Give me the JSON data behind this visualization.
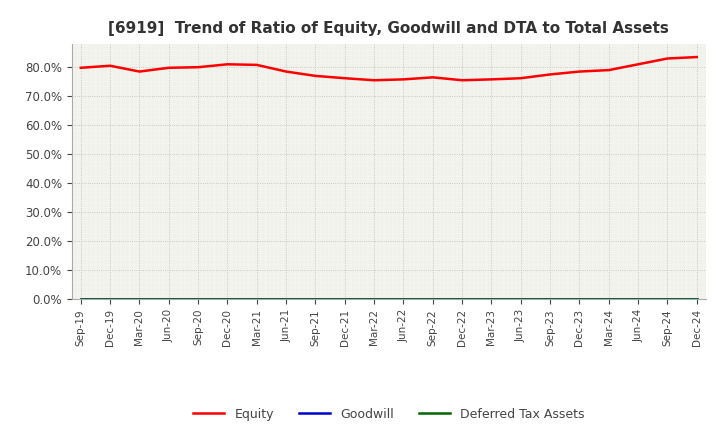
{
  "title": "[6919]  Trend of Ratio of Equity, Goodwill and DTA to Total Assets",
  "x_labels": [
    "Sep-19",
    "Dec-19",
    "Mar-20",
    "Jun-20",
    "Sep-20",
    "Dec-20",
    "Mar-21",
    "Jun-21",
    "Sep-21",
    "Dec-21",
    "Mar-22",
    "Jun-22",
    "Sep-22",
    "Dec-22",
    "Mar-23",
    "Jun-23",
    "Sep-23",
    "Dec-23",
    "Mar-24",
    "Jun-24",
    "Sep-24",
    "Dec-24"
  ],
  "equity": [
    79.8,
    80.5,
    78.5,
    79.8,
    80.0,
    81.0,
    80.8,
    78.5,
    77.0,
    76.2,
    75.5,
    75.8,
    76.5,
    75.5,
    75.8,
    76.2,
    77.5,
    78.5,
    79.0,
    81.0,
    83.0,
    83.5
  ],
  "goodwill": [
    0.0,
    0.0,
    0.0,
    0.0,
    0.0,
    0.0,
    0.0,
    0.0,
    0.0,
    0.0,
    0.0,
    0.0,
    0.0,
    0.0,
    0.0,
    0.0,
    0.0,
    0.0,
    0.0,
    0.0,
    0.0,
    0.0
  ],
  "dta": [
    0.0,
    0.0,
    0.0,
    0.0,
    0.0,
    0.0,
    0.0,
    0.0,
    0.0,
    0.0,
    0.0,
    0.0,
    0.0,
    0.0,
    0.0,
    0.0,
    0.0,
    0.0,
    0.0,
    0.0,
    0.0,
    0.0
  ],
  "equity_color": "#FF0000",
  "goodwill_color": "#0000CC",
  "dta_color": "#006600",
  "ylim": [
    0,
    88
  ],
  "yticks": [
    0,
    10,
    20,
    30,
    40,
    50,
    60,
    70,
    80
  ],
  "plot_bg_color": "#F5F5F0",
  "fig_bg_color": "#FFFFFF",
  "grid_color": "#CCCCCC",
  "title_fontsize": 11,
  "title_color": "#333333"
}
